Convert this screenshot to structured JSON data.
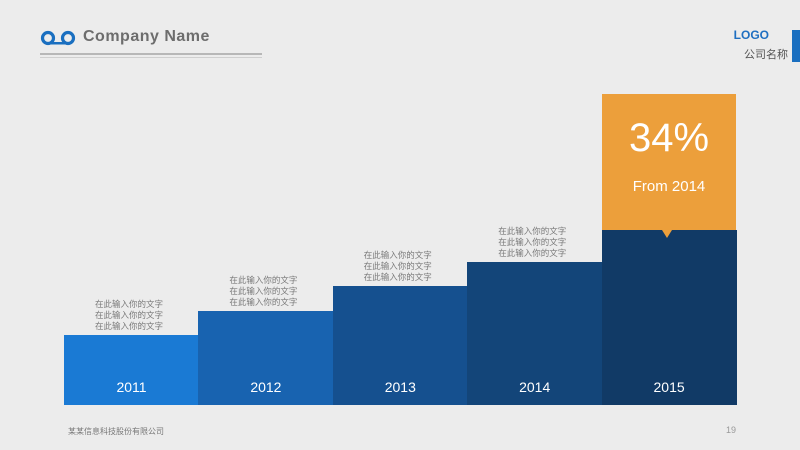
{
  "header": {
    "company_name": "Company Name",
    "logo_word": "LOGO",
    "logo_subtitle": "公司名称",
    "brand_color": "#1a6fc0"
  },
  "chart_data": {
    "type": "bar",
    "categories": [
      "2011",
      "2012",
      "2013",
      "2014",
      "2015"
    ],
    "values": [
      1,
      2,
      3,
      4,
      5
    ],
    "colors": [
      "#1a7ad4",
      "#1863b0",
      "#15508f",
      "#134579",
      "#113a66"
    ],
    "descriptions": [
      [
        "在此输入你的文字",
        "在此输入你的文字",
        "在此输入你的文字"
      ],
      [
        "在此输入你的文字",
        "在此输入你的文字",
        "在此输入你的文字"
      ],
      [
        "在此输入你的文字",
        "在此输入你的文字",
        "在此输入你的文字"
      ],
      [
        "在此输入你的文字",
        "在此输入你的文字",
        "在此输入你的文字"
      ]
    ],
    "callout": {
      "value": "34%",
      "label": "From 2014",
      "color": "#ec9f3b"
    }
  },
  "footer": {
    "text": "某某信息科技股份有限公司",
    "page_number": "19"
  }
}
